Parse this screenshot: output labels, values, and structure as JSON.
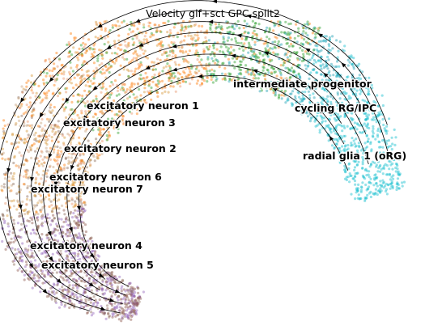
{
  "chart_data": {
    "type": "scatter",
    "title": "Velocity glf+sct GPC split2",
    "xlabel": "",
    "ylabel": "",
    "grid": false,
    "overlay": "velocity stream arrows",
    "clusters": [
      {
        "name": "intermediate progenitor",
        "color": "#2ca02c"
      },
      {
        "name": "cycling RG/IPC",
        "color": "#1f9fb4"
      },
      {
        "name": "radial glia 1 (oRG)",
        "color": "#17becf"
      },
      {
        "name": "excitatory neuron 1",
        "color": "#ff7f0e"
      },
      {
        "name": "excitatory neuron 3",
        "color": "#e8956a"
      },
      {
        "name": "excitatory neuron 2",
        "color": "#d89a3c"
      },
      {
        "name": "excitatory neuron 6",
        "color": "#c7a27c"
      },
      {
        "name": "excitatory neuron 7",
        "color": "#8c6d5a"
      },
      {
        "name": "excitatory neuron 4",
        "color": "#9467bd"
      },
      {
        "name": "excitatory neuron 5",
        "color": "#8c564b"
      }
    ]
  }
}
